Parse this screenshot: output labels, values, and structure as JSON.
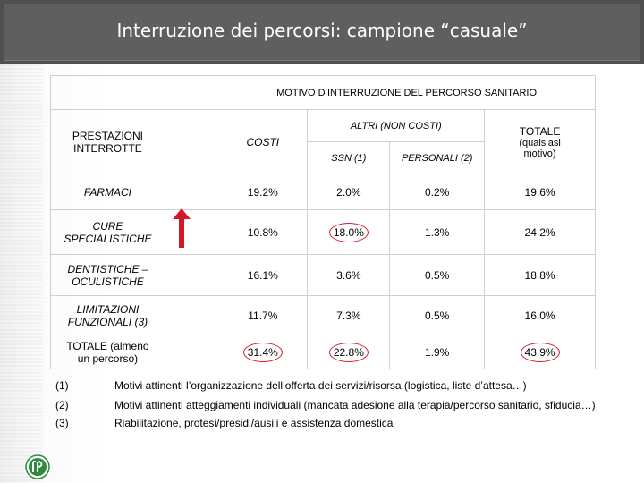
{
  "title": "Interruzione dei percorsi: campione “casuale”",
  "table": {
    "header_main": "MOTIVO D’INTERRUZIONE DEL PERCORSO SANITARIO",
    "col_prestazioni": "PRESTAZIONI INTERROTTE",
    "col_costi": "COSTI",
    "col_altri": "ALTRI (NON COSTI)",
    "col_ssn": "SSN (1)",
    "col_personali": "PERSONALI (2)",
    "col_totale_line1": "TOTALE",
    "col_totale_line2": "(qualsiasi motivo)",
    "rows": [
      {
        "label": "FARMACI",
        "costi": "19.2%",
        "ssn": "2.0%",
        "personali": "0.2%",
        "totale": "19.6%"
      },
      {
        "label": "CURE SPECIALISTICHE",
        "costi": "10.8%",
        "ssn": "18.0%",
        "personali": "1.3%",
        "totale": "24.2%"
      },
      {
        "label": "DENTISTICHE – OCULISTICHE",
        "costi": "16.1%",
        "ssn": "3.6%",
        "personali": "0.5%",
        "totale": "18.8%"
      },
      {
        "label": "LIMITAZIONI FUNZIONALI (3)",
        "costi": "11.7%",
        "ssn": "7.3%",
        "personali": "0.5%",
        "totale": "16.0%"
      },
      {
        "label": "TOTALE (almeno un percorso)",
        "costi": "31.4%",
        "ssn": "22.8%",
        "personali": "1.9%",
        "totale": "43.9%"
      }
    ]
  },
  "notes": [
    {
      "num": "(1)",
      "text": "Motivi attinenti l’organizzazione dell’offerta dei servizi/risorsa (logistica, liste d’attesa…)"
    },
    {
      "num": "(2)",
      "text": "Motivi attinenti atteggiamenti individuali (mancata adesione alla terapia/percorso sanitario, sfiducia…)"
    },
    {
      "num": "(3)",
      "text": "Riabilitazione, protesi/presidi/ausili e assistenza domestica"
    }
  ],
  "colors": {
    "highlight": "#d6192a",
    "header_bg": "#5f5f5f",
    "logo": "#2e8b3e"
  },
  "icons": {
    "arrow": "up-arrow-icon",
    "logo": "logo-icon"
  }
}
